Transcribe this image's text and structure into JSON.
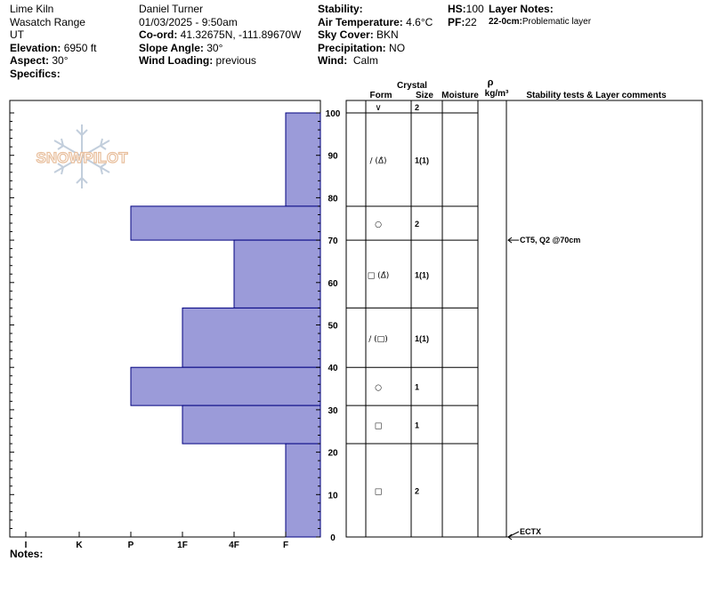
{
  "header": {
    "col1": {
      "location": "Lime Kiln",
      "range": "Wasatch Range",
      "state": "UT",
      "elevation_label": "Elevation:",
      "elevation_value": "6950 ft",
      "aspect_label": "Aspect:",
      "aspect_value": "30°",
      "specifics_label": "Specifics:"
    },
    "col2": {
      "observer": "Daniel Turner",
      "datetime": "01/03/2025 - 9:50am",
      "coord_label": "Co-ord:",
      "coord_value": "41.32675N, -111.89670W",
      "slope_label": "Slope Angle:",
      "slope_value": "30°",
      "wind_loading_label": "Wind Loading:",
      "wind_loading_value": "previous"
    },
    "col3": {
      "stability_label": "Stability:",
      "air_temp_label": "Air Temperature:",
      "air_temp_value": "4.6°C",
      "sky_label": "Sky Cover:",
      "sky_value": "BKN",
      "precip_label": "Precipitation:",
      "precip_value": "NO",
      "wind_label": "Wind:",
      "wind_value": "Calm"
    },
    "col4": {
      "hs_label": "HS:",
      "hs_value": "100",
      "pf_label": "PF:",
      "pf_value": "22"
    },
    "col5": {
      "layer_notes_label": "Layer Notes:",
      "layer_note_range": "22-0cm:",
      "layer_note_text": "Problematic layer"
    }
  },
  "watermark": "SNOWPILOT",
  "table_headers": {
    "crystal": "Crystal",
    "form": "Form",
    "size": "Size",
    "moisture": "Moisture",
    "rho": "ρ",
    "density_unit": "kg/m³",
    "comments": "Stability tests & Layer comments"
  },
  "notes_label": "Notes:",
  "chart_data": {
    "type": "bar",
    "orientation": "horizontal-step",
    "title": "",
    "ylabel": "",
    "ylim": [
      0,
      100
    ],
    "y_ticks": [
      0,
      10,
      20,
      30,
      40,
      50,
      60,
      70,
      80,
      90,
      100
    ],
    "hardness_ticks": [
      "I",
      "K",
      "P",
      "1F",
      "4F",
      "F"
    ],
    "hardness_levels": {
      "F": 1,
      "4F": 2,
      "1F": 3,
      "P": 4,
      "K": 5,
      "I": 6
    },
    "bar_color": "#9b9bd9",
    "bar_edge_color": "#000080",
    "layers": [
      {
        "top": 100,
        "bottom": 78,
        "hardness": "F",
        "form": "∨/(Δ̂)",
        "form_glyph": "/",
        "form_sub": "(Δ̂)",
        "size": "1(1)"
      },
      {
        "top": 78,
        "bottom": 70,
        "hardness": "P",
        "form_glyph": "○",
        "form_sub": "",
        "size": "2"
      },
      {
        "top": 70,
        "bottom": 54,
        "hardness": "4F",
        "form_glyph": "□",
        "form_sub": "(Δ̂)",
        "size": "1(1)"
      },
      {
        "top": 54,
        "bottom": 40,
        "hardness": "1F",
        "form_glyph": "/",
        "form_sub": "(□)",
        "size": "1(1)"
      },
      {
        "top": 40,
        "bottom": 31,
        "hardness": "P",
        "form_glyph": "○",
        "form_sub": "",
        "size": "1"
      },
      {
        "top": 31,
        "bottom": 22,
        "hardness": "1F",
        "form_glyph": "□",
        "form_sub": "",
        "size": "1"
      },
      {
        "top": 22,
        "bottom": 0,
        "hardness": "F",
        "form_glyph": "□",
        "form_sub": "",
        "size": "2"
      }
    ],
    "surface_layer": {
      "form_glyph": "∨",
      "size": "2"
    },
    "stability_tests": [
      {
        "depth": 70,
        "text": "CT5, Q2 @70cm"
      },
      {
        "depth": 0,
        "text": "ECTX"
      }
    ]
  }
}
